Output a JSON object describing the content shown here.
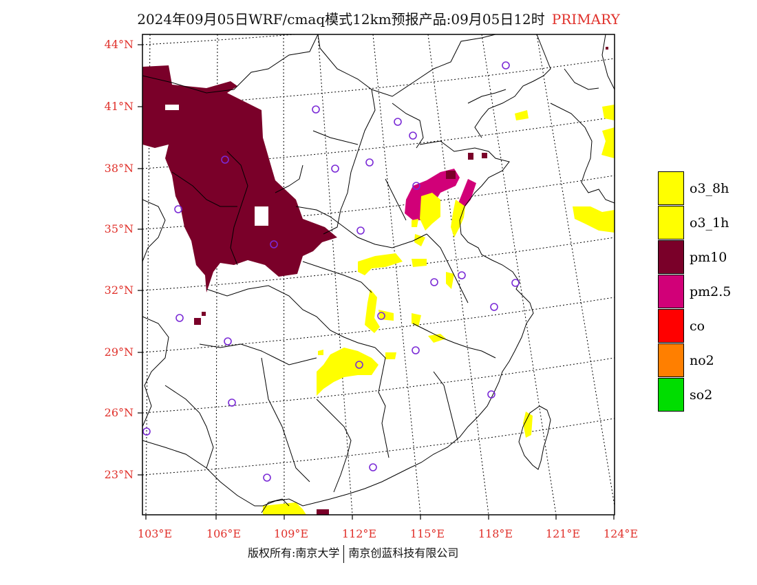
{
  "title": {
    "main": "2024年09月05日WRF/cmaq模式12km预报产品:09月05日12时",
    "tag": "PRIMARY"
  },
  "axes": {
    "lat_labels": [
      "44°N",
      "41°N",
      "38°N",
      "35°N",
      "32°N",
      "29°N",
      "26°N",
      "23°N"
    ],
    "lon_labels": [
      "103°E",
      "106°E",
      "109°E",
      "112°E",
      "115°E",
      "118°E",
      "121°E",
      "124°E"
    ],
    "label_color": "#e0302a"
  },
  "legend": {
    "items": [
      {
        "label": "o3_8h",
        "color": "#ffff00"
      },
      {
        "label": "o3_1h",
        "color": "#ffff00"
      },
      {
        "label": "pm10",
        "color": "#7a0029"
      },
      {
        "label": "pm2.5",
        "color": "#d10078"
      },
      {
        "label": "co",
        "color": "#ff0000"
      },
      {
        "label": "no2",
        "color": "#ff7f00"
      },
      {
        "label": "so2",
        "color": "#00dd00"
      }
    ]
  },
  "footer": {
    "left": "版权所有:南京大学",
    "right": "南京创蓝科技有限公司"
  }
}
